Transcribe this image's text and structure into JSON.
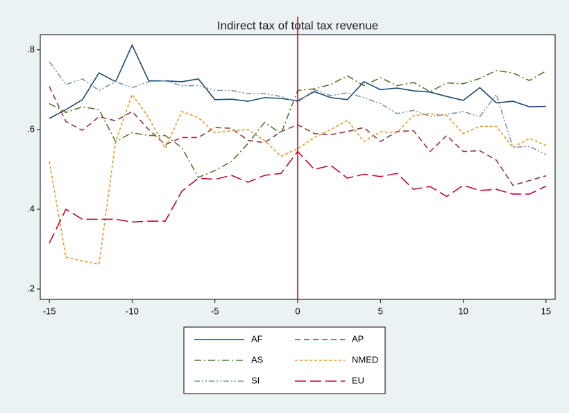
{
  "chart_data": {
    "type": "line",
    "title": "Indirect tax of total tax revenue",
    "x": [
      -15,
      -14,
      -13,
      -12,
      -11,
      -10,
      -9,
      -8,
      -7,
      -6,
      -5,
      -4,
      -3,
      -2,
      -1,
      0,
      1,
      2,
      3,
      4,
      5,
      6,
      7,
      8,
      9,
      10,
      11,
      12,
      13,
      14,
      15
    ],
    "xlim": [
      -15.55,
      15.55
    ],
    "xticks": [
      -15,
      -10,
      -5,
      0,
      5,
      10,
      15
    ],
    "ylim": [
      0.174,
      0.838
    ],
    "yticks": [
      {
        "value": 0.2,
        "label": ".2"
      },
      {
        "value": 0.4,
        "label": ".4"
      },
      {
        "value": 0.6,
        "label": ".6"
      },
      {
        "value": 0.8,
        "label": ".8"
      }
    ],
    "vline": 0,
    "vline_color": "#9b1c2e",
    "series": [
      {
        "name": "AF",
        "color": "#1a476f",
        "dash": "none",
        "values": [
          0.628,
          0.65,
          0.675,
          0.742,
          0.72,
          0.812,
          0.722,
          0.722,
          0.72,
          0.727,
          0.675,
          0.676,
          0.671,
          0.68,
          0.678,
          0.672,
          0.695,
          0.68,
          0.675,
          0.72,
          0.7,
          0.704,
          0.697,
          0.694,
          0.683,
          0.673,
          0.705,
          0.667,
          0.671,
          0.657,
          0.658
        ]
      },
      {
        "name": "AP",
        "color": "#90353b",
        "dash": "8 5",
        "values": [
          0.708,
          0.62,
          0.598,
          0.632,
          0.622,
          0.645,
          0.6,
          0.562,
          0.58,
          0.58,
          0.605,
          0.603,
          0.573,
          0.567,
          0.595,
          0.612,
          0.59,
          0.587,
          0.595,
          0.605,
          0.57,
          0.595,
          0.597,
          0.545,
          0.585,
          0.545,
          0.547,
          0.523,
          0.46,
          0.472,
          0.484
        ]
      },
      {
        "name": "AS",
        "color": "#55752f",
        "dash": "10 4 2 4",
        "values": [
          0.665,
          0.643,
          0.657,
          0.65,
          0.57,
          0.592,
          0.585,
          0.585,
          0.555,
          0.48,
          0.497,
          0.52,
          0.565,
          0.618,
          0.59,
          0.698,
          0.702,
          0.713,
          0.735,
          0.71,
          0.73,
          0.71,
          0.718,
          0.695,
          0.717,
          0.715,
          0.728,
          0.748,
          0.742,
          0.723,
          0.747
        ]
      },
      {
        "name": "NMED",
        "color": "#e8961d",
        "dash": "4 3",
        "values": [
          0.52,
          0.28,
          0.27,
          0.262,
          0.57,
          0.688,
          0.63,
          0.553,
          0.645,
          0.63,
          0.592,
          0.597,
          0.6,
          0.572,
          0.533,
          0.552,
          0.58,
          0.6,
          0.623,
          0.57,
          0.594,
          0.593,
          0.635,
          0.64,
          0.635,
          0.59,
          0.608,
          0.608,
          0.555,
          0.578,
          0.56
        ]
      },
      {
        "name": "SI",
        "color": "#7b92a8",
        "dash": "8 3 2 3 2 3",
        "values": [
          0.77,
          0.713,
          0.727,
          0.698,
          0.72,
          0.705,
          0.72,
          0.722,
          0.71,
          0.71,
          0.698,
          0.698,
          0.69,
          0.69,
          0.683,
          0.668,
          0.7,
          0.685,
          0.692,
          0.68,
          0.665,
          0.64,
          0.648,
          0.633,
          0.638,
          0.645,
          0.632,
          0.688,
          0.555,
          0.558,
          0.537
        ]
      },
      {
        "name": "EU",
        "color": "#c10534",
        "dash": "16 6",
        "values": [
          0.315,
          0.4,
          0.375,
          0.375,
          0.375,
          0.368,
          0.37,
          0.37,
          0.445,
          0.478,
          0.475,
          0.485,
          0.468,
          0.485,
          0.49,
          0.545,
          0.5,
          0.51,
          0.478,
          0.488,
          0.482,
          0.49,
          0.45,
          0.457,
          0.432,
          0.46,
          0.447,
          0.45,
          0.438,
          0.438,
          0.458
        ]
      }
    ]
  }
}
